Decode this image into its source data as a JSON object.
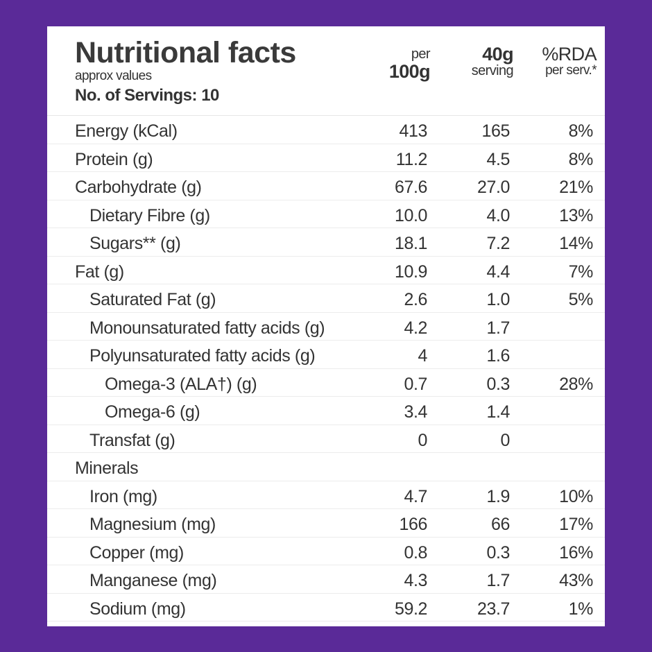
{
  "header": {
    "title": "Nutritional facts",
    "subtitle": "approx values",
    "servings": "No. of Servings: 10",
    "col1": {
      "top": "per",
      "bottom": "100g"
    },
    "col2": {
      "top": "40g",
      "bottom": "serving"
    },
    "col3": {
      "top": "%RDA",
      "bottom": "per serv.*"
    }
  },
  "rows": [
    {
      "label": "Energy (kCal)",
      "level": 0,
      "per100g": "413",
      "serving": "165",
      "rda": "8%"
    },
    {
      "label": "Protein (g)",
      "level": 0,
      "per100g": "11.2",
      "serving": "4.5",
      "rda": "8%"
    },
    {
      "label": "Carbohydrate (g)",
      "level": 0,
      "per100g": "67.6",
      "serving": "27.0",
      "rda": "21%"
    },
    {
      "label": "Dietary Fibre (g)",
      "level": 1,
      "per100g": "10.0",
      "serving": "4.0",
      "rda": "13%"
    },
    {
      "label": "Sugars** (g)",
      "level": 1,
      "per100g": "18.1",
      "serving": "7.2",
      "rda": "14%"
    },
    {
      "label": "Fat (g)",
      "level": 0,
      "per100g": "10.9",
      "serving": "4.4",
      "rda": "7%"
    },
    {
      "label": "Saturated Fat (g)",
      "level": 1,
      "per100g": "2.6",
      "serving": "1.0",
      "rda": "5%"
    },
    {
      "label": "Monounsaturated fatty acids (g)",
      "level": 1,
      "per100g": "4.2",
      "serving": "1.7",
      "rda": ""
    },
    {
      "label": "Polyunsaturated fatty acids (g)",
      "level": 1,
      "per100g": "4",
      "serving": "1.6",
      "rda": ""
    },
    {
      "label": "Omega-3 (ALA†) (g)",
      "level": 2,
      "per100g": "0.7",
      "serving": "0.3",
      "rda": "28%"
    },
    {
      "label": "Omega-6 (g)",
      "level": 2,
      "per100g": "3.4",
      "serving": "1.4",
      "rda": ""
    },
    {
      "label": "Transfat (g)",
      "level": 1,
      "per100g": "0",
      "serving": "0",
      "rda": ""
    },
    {
      "label": "Minerals",
      "level": 0,
      "per100g": "",
      "serving": "",
      "rda": ""
    },
    {
      "label": "Iron (mg)",
      "level": 1,
      "per100g": "4.7",
      "serving": "1.9",
      "rda": "10%"
    },
    {
      "label": "Magnesium (mg)",
      "level": 1,
      "per100g": "166",
      "serving": "66",
      "rda": "17%"
    },
    {
      "label": "Copper (mg)",
      "level": 1,
      "per100g": "0.8",
      "serving": "0.3",
      "rda": "16%"
    },
    {
      "label": "Manganese (mg)",
      "level": 1,
      "per100g": "4.3",
      "serving": "1.7",
      "rda": "43%"
    },
    {
      "label": "Sodium (mg)",
      "level": 1,
      "per100g": "59.2",
      "serving": "23.7",
      "rda": "1%"
    }
  ],
  "colors": {
    "background": "#5a2a98",
    "card": "#ffffff",
    "text": "#333333"
  }
}
